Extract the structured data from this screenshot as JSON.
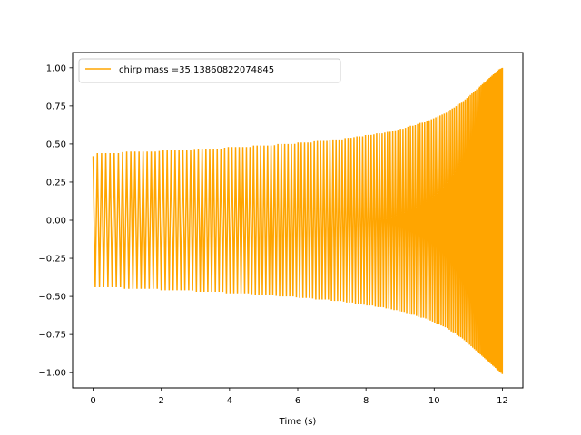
{
  "chart_data": {
    "type": "line",
    "title": "",
    "xlabel": "Time (s)",
    "ylabel": "",
    "xlim": [
      -0.6,
      12.6
    ],
    "ylim": [
      -1.1,
      1.1
    ],
    "xticks": [
      0,
      2,
      4,
      6,
      8,
      10,
      12
    ],
    "xtick_labels": [
      "0",
      "2",
      "4",
      "6",
      "8",
      "10",
      "12"
    ],
    "yticks": [
      1.0,
      0.75,
      0.5,
      0.25,
      0.0,
      -0.25,
      -0.5,
      -0.75,
      -1.0
    ],
    "ytick_labels": [
      "1.00",
      "0.75",
      "0.50",
      "0.25",
      "0.00",
      "−0.25",
      "−0.50",
      "−0.75",
      "−1.00"
    ],
    "grid": false,
    "legend_position": "upper-left",
    "series": [
      {
        "name": "chirp mass =35.13860822074845",
        "color": "#ffa500",
        "x": [
          0.0,
          0.1,
          0.2,
          0.3,
          0.4,
          0.5,
          0.6,
          0.7,
          0.8,
          0.9,
          1.0,
          1.1,
          1.2,
          1.3,
          1.4,
          1.5,
          1.6,
          1.7,
          1.8,
          1.9,
          2.0,
          2.1,
          2.2,
          2.3,
          2.4,
          2.5,
          2.6,
          2.7,
          2.8,
          2.9,
          3.0,
          3.1,
          3.2,
          3.3,
          3.4,
          3.5,
          3.6,
          3.7,
          3.8,
          3.9,
          4.0,
          4.1,
          4.2,
          4.3,
          4.4,
          4.5,
          4.6,
          4.7,
          4.8,
          4.9,
          5.0,
          5.1,
          5.2,
          5.3,
          5.4,
          5.5,
          5.6,
          5.7,
          5.8,
          5.9,
          6.0,
          6.1,
          6.2,
          6.3,
          6.4,
          6.5,
          6.6,
          6.7,
          6.8,
          6.9,
          7.0,
          7.1,
          7.2,
          7.3,
          7.4,
          7.5,
          7.6,
          7.7,
          7.8,
          7.9,
          8.0,
          8.1,
          8.2,
          8.3,
          8.4,
          8.5,
          8.6,
          8.7,
          8.8,
          8.9,
          9.0,
          9.1,
          9.2,
          9.3,
          9.4,
          9.5,
          9.6,
          9.7,
          9.8,
          9.9,
          10.0,
          10.1,
          10.2,
          10.3,
          10.4,
          10.5,
          10.6,
          10.7,
          10.8,
          10.9,
          11.0,
          11.1,
          11.2,
          11.3,
          11.4,
          11.5,
          11.6,
          11.7,
          11.8,
          11.9,
          12.0
        ],
        "upper": [
          0.42,
          0.44,
          0.44,
          0.44,
          0.44,
          0.44,
          0.44,
          0.44,
          0.44,
          0.45,
          0.45,
          0.45,
          0.45,
          0.45,
          0.45,
          0.45,
          0.45,
          0.45,
          0.45,
          0.45,
          0.46,
          0.46,
          0.46,
          0.46,
          0.46,
          0.46,
          0.46,
          0.46,
          0.46,
          0.46,
          0.47,
          0.47,
          0.47,
          0.47,
          0.47,
          0.47,
          0.47,
          0.47,
          0.47,
          0.48,
          0.48,
          0.48,
          0.48,
          0.48,
          0.48,
          0.48,
          0.48,
          0.49,
          0.49,
          0.49,
          0.49,
          0.49,
          0.49,
          0.49,
          0.5,
          0.5,
          0.5,
          0.5,
          0.5,
          0.5,
          0.51,
          0.51,
          0.51,
          0.51,
          0.51,
          0.52,
          0.52,
          0.52,
          0.52,
          0.52,
          0.53,
          0.53,
          0.53,
          0.53,
          0.54,
          0.54,
          0.54,
          0.55,
          0.55,
          0.55,
          0.56,
          0.56,
          0.56,
          0.57,
          0.57,
          0.57,
          0.58,
          0.58,
          0.59,
          0.59,
          0.6,
          0.6,
          0.61,
          0.62,
          0.62,
          0.63,
          0.64,
          0.64,
          0.65,
          0.66,
          0.67,
          0.68,
          0.69,
          0.7,
          0.71,
          0.73,
          0.74,
          0.76,
          0.77,
          0.79,
          0.81,
          0.83,
          0.85,
          0.87,
          0.89,
          0.91,
          0.93,
          0.95,
          0.97,
          0.99,
          1.0
        ],
        "lower": [
          -0.44,
          -0.44,
          -0.44,
          -0.44,
          -0.44,
          -0.44,
          -0.44,
          -0.44,
          -0.44,
          -0.45,
          -0.45,
          -0.45,
          -0.45,
          -0.45,
          -0.45,
          -0.45,
          -0.45,
          -0.45,
          -0.45,
          -0.45,
          -0.46,
          -0.46,
          -0.46,
          -0.46,
          -0.46,
          -0.46,
          -0.46,
          -0.46,
          -0.46,
          -0.46,
          -0.47,
          -0.47,
          -0.47,
          -0.47,
          -0.47,
          -0.47,
          -0.47,
          -0.47,
          -0.47,
          -0.48,
          -0.48,
          -0.48,
          -0.48,
          -0.48,
          -0.48,
          -0.48,
          -0.48,
          -0.49,
          -0.49,
          -0.49,
          -0.49,
          -0.49,
          -0.49,
          -0.49,
          -0.5,
          -0.5,
          -0.5,
          -0.5,
          -0.5,
          -0.5,
          -0.51,
          -0.51,
          -0.51,
          -0.51,
          -0.51,
          -0.52,
          -0.52,
          -0.52,
          -0.52,
          -0.52,
          -0.53,
          -0.53,
          -0.53,
          -0.53,
          -0.54,
          -0.54,
          -0.54,
          -0.55,
          -0.55,
          -0.55,
          -0.56,
          -0.56,
          -0.56,
          -0.57,
          -0.57,
          -0.57,
          -0.58,
          -0.58,
          -0.59,
          -0.59,
          -0.6,
          -0.6,
          -0.61,
          -0.62,
          -0.62,
          -0.63,
          -0.64,
          -0.64,
          -0.65,
          -0.66,
          -0.67,
          -0.68,
          -0.69,
          -0.7,
          -0.71,
          -0.73,
          -0.74,
          -0.76,
          -0.77,
          -0.79,
          -0.81,
          -0.83,
          -0.85,
          -0.87,
          -0.89,
          -0.91,
          -0.93,
          -0.95,
          -0.97,
          -0.99,
          -1.01
        ]
      }
    ]
  }
}
